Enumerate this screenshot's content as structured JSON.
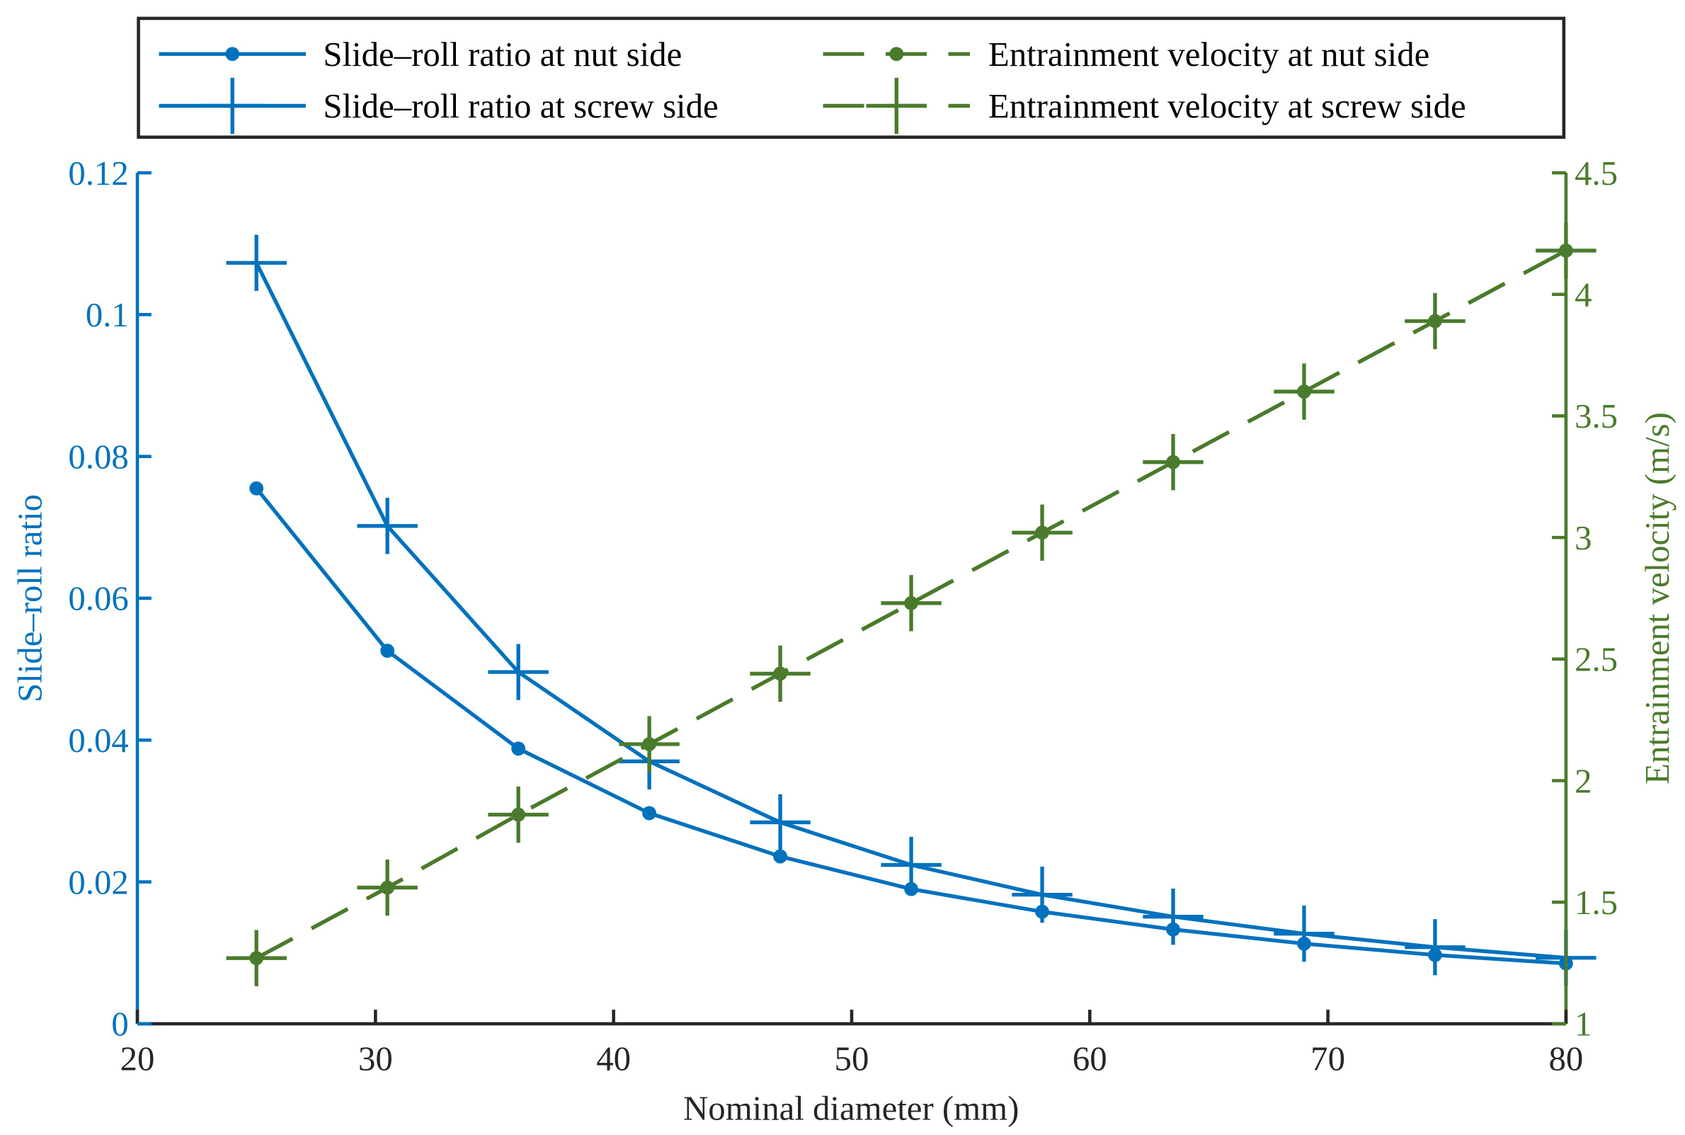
{
  "chart_data": {
    "type": "line",
    "xlabel": "Nominal diameter (mm)",
    "ylabel_left": "Slide–roll ratio",
    "ylabel_right": "Entrainment velocity (m/s)",
    "xlim": [
      20,
      80
    ],
    "ylim_left": [
      0,
      0.12
    ],
    "ylim_right": [
      1,
      4.5
    ],
    "xticks": [
      "20",
      "30",
      "40",
      "50",
      "60",
      "70",
      "80"
    ],
    "yticks_left": [
      "0",
      "0.02",
      "0.04",
      "0.06",
      "0.08",
      "0.1",
      "0.12"
    ],
    "yticks_right": [
      "1",
      "1.5",
      "2",
      "2.5",
      "3",
      "3.5",
      "4",
      "4.5"
    ],
    "legend_position": "top-outside",
    "grid": false,
    "x": [
      25,
      30.5,
      36,
      41.5,
      47,
      52.5,
      58,
      63.5,
      69,
      74.5,
      80
    ],
    "series": [
      {
        "name": "Slide–roll ratio at nut side",
        "axis": "left",
        "style": "solid",
        "marker": "dot",
        "color": "#0072BD",
        "values": [
          0.0755,
          0.0526,
          0.0388,
          0.0297,
          0.0236,
          0.019,
          0.0158,
          0.0133,
          0.0113,
          0.0097,
          0.0085
        ]
      },
      {
        "name": "Slide–roll ratio at screw side",
        "axis": "left",
        "style": "solid",
        "marker": "plus",
        "color": "#0072BD",
        "values": [
          0.1073,
          0.0702,
          0.0496,
          0.037,
          0.0284,
          0.0224,
          0.0182,
          0.0151,
          0.0127,
          0.0108,
          0.0093
        ]
      },
      {
        "name": "Entrainment velocity at nut side",
        "axis": "right",
        "style": "dashed",
        "marker": "dot",
        "color": "#4A7A2C",
        "values": [
          1.27,
          1.56,
          1.86,
          2.15,
          2.44,
          2.73,
          3.02,
          3.31,
          3.6,
          3.89,
          4.18
        ]
      },
      {
        "name": "Entrainment velocity at screw side",
        "axis": "right",
        "style": "dashed",
        "marker": "plus",
        "color": "#4A7A2C",
        "values": [
          1.27,
          1.56,
          1.86,
          2.15,
          2.44,
          2.73,
          3.02,
          3.31,
          3.6,
          3.89,
          4.18
        ]
      }
    ]
  }
}
